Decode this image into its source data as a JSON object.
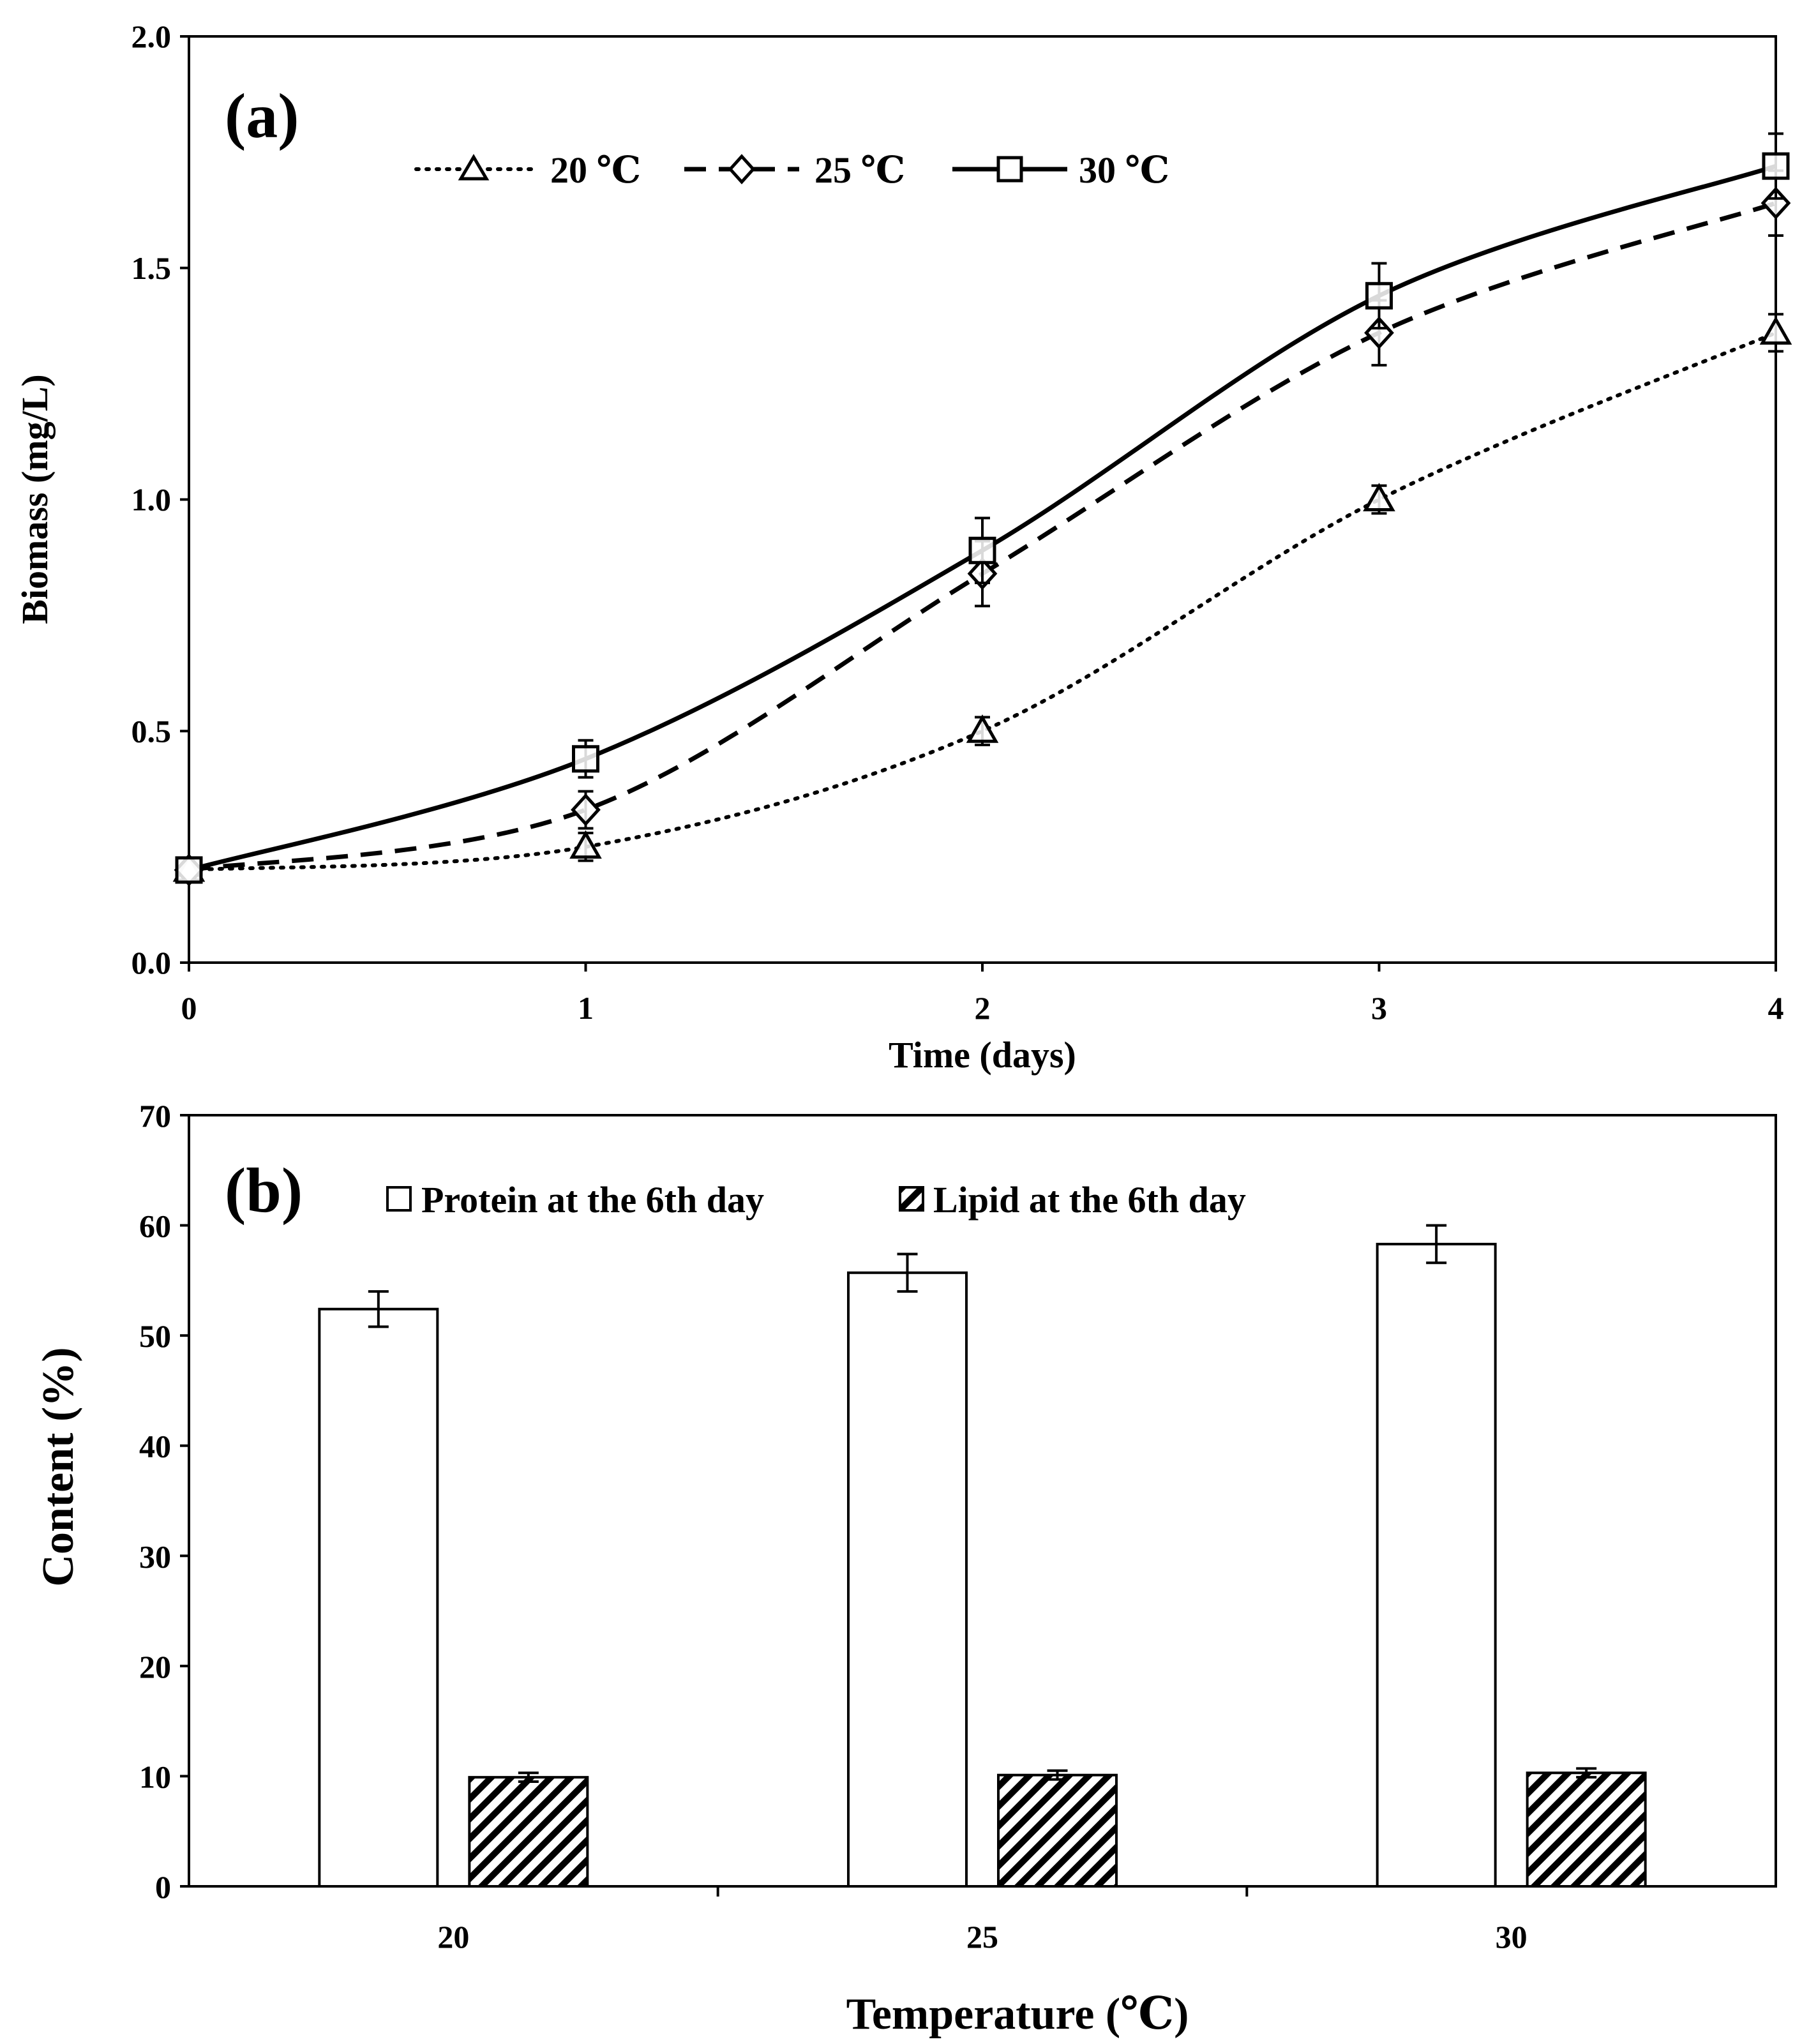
{
  "colors": {
    "ink": "#000000",
    "background": "#ffffff"
  },
  "chart_data": [
    {
      "type": "line",
      "panel_label": "(a)",
      "title": "",
      "xlabel": "Time (days)",
      "ylabel": "Biomass (mg/L)",
      "xlim": [
        0,
        4
      ],
      "ylim": [
        0,
        2.0
      ],
      "x_ticks": [
        "0",
        "1",
        "2",
        "3",
        "4"
      ],
      "y_ticks": [
        "0.0",
        "0.5",
        "1.0",
        "1.5",
        "2.0"
      ],
      "grid": false,
      "legend_position": "top-left",
      "x": [
        0,
        1,
        2,
        3,
        4
      ],
      "series": [
        {
          "name": "20 ℃",
          "marker": "triangle",
          "line_style": "dotted",
          "values": [
            0.2,
            0.25,
            0.5,
            1.0,
            1.36
          ],
          "errors": [
            0.01,
            0.03,
            0.03,
            0.03,
            0.04
          ]
        },
        {
          "name": "25 ℃",
          "marker": "diamond",
          "line_style": "dashed",
          "values": [
            0.2,
            0.33,
            0.84,
            1.36,
            1.64
          ],
          "errors": [
            0.01,
            0.04,
            0.07,
            0.07,
            0.07
          ]
        },
        {
          "name": "30 ℃",
          "marker": "square",
          "line_style": "solid",
          "values": [
            0.2,
            0.44,
            0.89,
            1.44,
            1.72
          ],
          "errors": [
            0.01,
            0.04,
            0.07,
            0.07,
            0.07
          ]
        }
      ]
    },
    {
      "type": "bar",
      "panel_label": "(b)",
      "title": "",
      "xlabel": "Temperature (℃)",
      "ylabel": "Content (%)",
      "ylim": [
        0,
        70
      ],
      "y_ticks": [
        "0",
        "10",
        "20",
        "30",
        "40",
        "50",
        "60",
        "70"
      ],
      "grid": false,
      "legend_position": "top",
      "categories": [
        "20",
        "25",
        "30"
      ],
      "series": [
        {
          "name": "Protein at the 6th day",
          "fill": "white",
          "values": [
            52.4,
            55.7,
            58.3
          ],
          "errors": [
            1.6,
            1.7,
            1.7
          ]
        },
        {
          "name": "Lipid at the 6th day",
          "fill": "hatched",
          "values": [
            9.9,
            10.1,
            10.3
          ],
          "errors": [
            0.4,
            0.4,
            0.4
          ]
        }
      ]
    }
  ]
}
